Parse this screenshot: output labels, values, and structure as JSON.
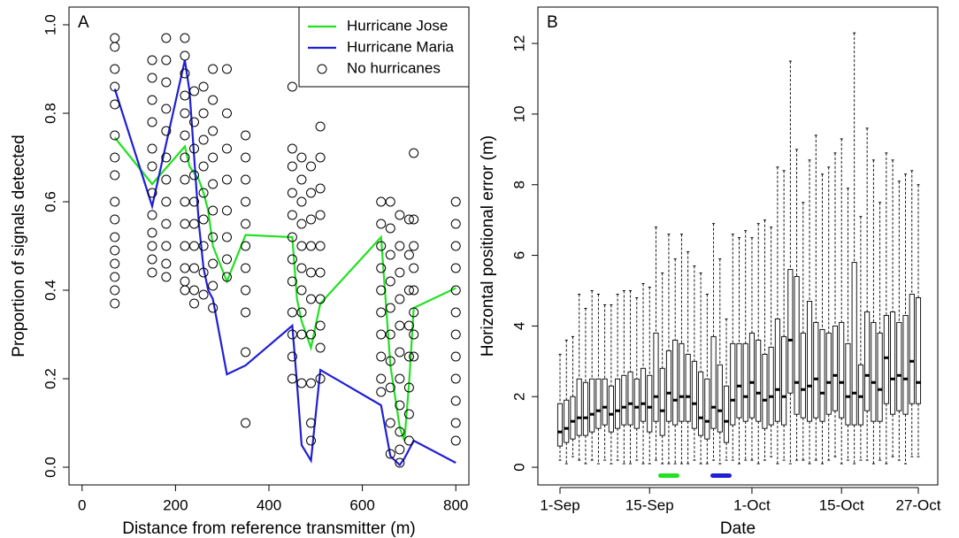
{
  "chart_data": [
    {
      "type": "scatter",
      "label": "A",
      "xlabel": "Distance from reference transmitter (m)",
      "ylabel": "Proportion of signals detected",
      "xlim": [
        -28,
        828
      ],
      "ylim": [
        -0.04,
        1.04
      ],
      "xticks": [
        0,
        200,
        400,
        600,
        800
      ],
      "yticks": [
        {
          "value": 0,
          "label": "0.0"
        },
        0.2,
        0.4,
        0.6,
        0.8,
        {
          "value": 1,
          "label": "1.0"
        }
      ],
      "legend": "top right",
      "series": [
        {
          "name": "Hurricane Jose",
          "color": "#22e022",
          "style": "line",
          "x": [
            70,
            150,
            220,
            230,
            250,
            260,
            270,
            280,
            310,
            350,
            450,
            460,
            470,
            490,
            510,
            640,
            660,
            680,
            690,
            700,
            710,
            800
          ],
          "values": [
            0.745,
            0.64,
            0.725,
            0.68,
            0.65,
            0.62,
            0.58,
            0.5,
            0.42,
            0.525,
            0.52,
            0.38,
            0.33,
            0.27,
            0.37,
            0.52,
            0.23,
            0.09,
            0.06,
            0.19,
            0.36,
            0.405
          ]
        },
        {
          "name": "Hurricane Maria",
          "color": "#1f1fd6",
          "style": "line",
          "x": [
            70,
            150,
            220,
            230,
            250,
            260,
            270,
            280,
            310,
            350,
            450,
            460,
            470,
            490,
            510,
            640,
            660,
            680,
            690,
            700,
            710,
            800
          ],
          "values": [
            0.855,
            0.59,
            0.92,
            0.85,
            0.55,
            0.45,
            0.4,
            0.38,
            0.21,
            0.23,
            0.32,
            0.19,
            0.05,
            0.015,
            0.22,
            0.14,
            0.025,
            0.005,
            0.02,
            0.04,
            0.06,
            0.01
          ]
        },
        {
          "name": "No hurricanes",
          "color": "#000000",
          "style": "points",
          "x": [
            70,
            70,
            70,
            70,
            70,
            70,
            70,
            70,
            70,
            70,
            70,
            70,
            70,
            70,
            70,
            70,
            150,
            150,
            150,
            150,
            150,
            150,
            150,
            150,
            150,
            150,
            150,
            150,
            180,
            180,
            180,
            180,
            180,
            180,
            180,
            180,
            180,
            180,
            180,
            180,
            220,
            220,
            220,
            220,
            220,
            220,
            220,
            220,
            220,
            220,
            220,
            220,
            220,
            220,
            240,
            240,
            240,
            240,
            240,
            240,
            240,
            240,
            240,
            240,
            260,
            260,
            260,
            260,
            260,
            260,
            260,
            260,
            260,
            280,
            280,
            280,
            280,
            280,
            280,
            280,
            280,
            280,
            280,
            310,
            310,
            310,
            310,
            310,
            310,
            310,
            310,
            350,
            350,
            350,
            350,
            350,
            350,
            350,
            350,
            350,
            350,
            350,
            450,
            450,
            450,
            450,
            450,
            450,
            450,
            450,
            450,
            450,
            450,
            450,
            470,
            470,
            470,
            470,
            470,
            470,
            470,
            470,
            470,
            470,
            490,
            490,
            490,
            490,
            490,
            490,
            490,
            490,
            490,
            490,
            510,
            510,
            510,
            510,
            510,
            510,
            510,
            510,
            510,
            510,
            640,
            640,
            640,
            640,
            640,
            640,
            640,
            640,
            640,
            640,
            660,
            660,
            660,
            660,
            660,
            660,
            660,
            660,
            660,
            660,
            680,
            680,
            680,
            680,
            680,
            680,
            680,
            680,
            680,
            680,
            680,
            700,
            700,
            700,
            700,
            700,
            700,
            700,
            700,
            710,
            710,
            710,
            710,
            710,
            710,
            710,
            710,
            800,
            800,
            800,
            800,
            800,
            800,
            800,
            800,
            800,
            800,
            800,
            800
          ],
          "values": [
            0.97,
            0.95,
            0.9,
            0.86,
            0.82,
            0.75,
            0.7,
            0.66,
            0.6,
            0.56,
            0.52,
            0.49,
            0.46,
            0.43,
            0.4,
            0.37,
            0.92,
            0.88,
            0.83,
            0.78,
            0.72,
            0.68,
            0.62,
            0.57,
            0.53,
            0.5,
            0.47,
            0.44,
            0.97,
            0.92,
            0.87,
            0.81,
            0.76,
            0.7,
            0.65,
            0.6,
            0.55,
            0.5,
            0.46,
            0.43,
            0.97,
            0.93,
            0.89,
            0.84,
            0.8,
            0.75,
            0.7,
            0.65,
            0.6,
            0.55,
            0.5,
            0.45,
            0.42,
            0.4,
            0.85,
            0.78,
            0.72,
            0.66,
            0.6,
            0.55,
            0.5,
            0.45,
            0.4,
            0.37,
            0.86,
            0.8,
            0.74,
            0.68,
            0.62,
            0.56,
            0.5,
            0.44,
            0.39,
            0.9,
            0.83,
            0.76,
            0.7,
            0.64,
            0.58,
            0.52,
            0.46,
            0.41,
            0.36,
            0.9,
            0.8,
            0.72,
            0.65,
            0.58,
            0.52,
            0.47,
            0.43,
            0.75,
            0.7,
            0.65,
            0.6,
            0.55,
            0.5,
            0.45,
            0.4,
            0.35,
            0.26,
            0.1,
            0.86,
            0.72,
            0.68,
            0.62,
            0.57,
            0.52,
            0.47,
            0.42,
            0.35,
            0.3,
            0.25,
            0.2,
            0.7,
            0.65,
            0.6,
            0.55,
            0.5,
            0.45,
            0.4,
            0.35,
            0.3,
            0.19,
            0.68,
            0.62,
            0.56,
            0.5,
            0.44,
            0.38,
            0.3,
            0.19,
            0.1,
            0.06,
            0.77,
            0.7,
            0.63,
            0.57,
            0.5,
            0.44,
            0.38,
            0.32,
            0.27,
            0.2,
            0.6,
            0.55,
            0.5,
            0.45,
            0.4,
            0.35,
            0.3,
            0.25,
            0.2,
            0.17,
            0.6,
            0.54,
            0.48,
            0.42,
            0.36,
            0.3,
            0.24,
            0.18,
            0.1,
            0.03,
            0.57,
            0.5,
            0.44,
            0.38,
            0.32,
            0.26,
            0.2,
            0.14,
            0.08,
            0.04,
            0.01,
            0.56,
            0.48,
            0.4,
            0.32,
            0.25,
            0.18,
            0.12,
            0.06,
            0.71,
            0.56,
            0.5,
            0.45,
            0.4,
            0.35,
            0.3,
            0.25,
            0.6,
            0.55,
            0.5,
            0.45,
            0.4,
            0.35,
            0.3,
            0.25,
            0.2,
            0.15,
            0.1,
            0.06
          ]
        }
      ]
    },
    {
      "type": "box",
      "label": "B",
      "xlabel": "Date",
      "ylabel": "Horizontal positional error (m)",
      "ylim": [
        -0.5,
        13.03
      ],
      "yticks": [
        0,
        2,
        4,
        6,
        8,
        10,
        12
      ],
      "categories": [
        "1-Sep",
        null,
        null,
        null,
        null,
        null,
        null,
        null,
        null,
        null,
        null,
        null,
        null,
        null,
        "15-Sep",
        null,
        null,
        null,
        null,
        null,
        null,
        null,
        null,
        null,
        null,
        null,
        null,
        null,
        null,
        null,
        "1-Oct",
        null,
        null,
        null,
        null,
        null,
        null,
        null,
        null,
        null,
        null,
        null,
        null,
        null,
        "15-Oct",
        null,
        null,
        null,
        null,
        null,
        null,
        null,
        null,
        null,
        null,
        null,
        "27-Oct"
      ],
      "min": [
        0.2,
        0.1,
        0.3,
        0.2,
        0.1,
        0.2,
        0.1,
        0.2,
        0.1,
        0.2,
        0.1,
        0.1,
        0.2,
        0.1,
        0.1,
        0.2,
        0.1,
        0.1,
        0.1,
        0.1,
        0.1,
        0.2,
        0.1,
        0.1,
        0.2,
        0.1,
        0.2,
        0.2,
        0.1,
        0.2,
        0.2,
        0.1,
        0.2,
        0.3,
        0.1,
        0.2,
        0.1,
        0.2,
        0.2,
        0.1,
        0.2,
        0.1,
        0.2,
        0.3,
        0.1,
        0.2,
        0.1,
        0.2,
        0.2,
        0.1,
        0.2,
        0.1,
        0.3,
        0.2,
        0.1,
        0.3,
        0.3
      ],
      "q1": [
        0.6,
        0.7,
        0.8,
        0.9,
        0.9,
        1.0,
        1.1,
        1.2,
        1.0,
        1.1,
        1.2,
        1.2,
        1.1,
        1.3,
        1.0,
        1.3,
        0.9,
        1.3,
        1.2,
        1.3,
        1.3,
        1.1,
        0.9,
        0.8,
        1.1,
        1.0,
        0.7,
        1.2,
        1.4,
        1.3,
        1.4,
        1.3,
        1.1,
        1.2,
        1.3,
        1.2,
        2.1,
        1.5,
        1.4,
        1.3,
        1.4,
        1.3,
        1.5,
        1.6,
        1.4,
        1.2,
        1.2,
        1.2,
        1.6,
        1.3,
        1.3,
        1.8,
        1.5,
        1.6,
        1.5,
        1.8,
        1.8
      ],
      "median": [
        1.0,
        1.1,
        1.3,
        1.4,
        1.4,
        1.5,
        1.6,
        1.7,
        1.5,
        1.6,
        1.7,
        1.8,
        1.7,
        1.8,
        1.7,
        2.0,
        1.6,
        2.1,
        1.9,
        2.0,
        2.0,
        1.8,
        1.4,
        1.3,
        1.7,
        1.6,
        1.3,
        1.9,
        2.3,
        2.0,
        2.4,
        2.1,
        1.9,
        2.0,
        2.2,
        2.0,
        3.6,
        2.4,
        2.2,
        2.3,
        2.5,
        2.1,
        2.4,
        2.6,
        2.4,
        2.0,
        2.1,
        2.0,
        2.6,
        2.4,
        2.2,
        3.1,
        2.5,
        2.6,
        2.5,
        3.0,
        2.4
      ],
      "q3": [
        1.8,
        1.9,
        2.0,
        2.5,
        2.4,
        2.5,
        2.5,
        2.5,
        2.3,
        2.5,
        2.6,
        2.7,
        2.5,
        2.8,
        2.6,
        3.8,
        2.8,
        3.3,
        3.6,
        3.5,
        3.2,
        3.0,
        2.7,
        2.5,
        3.7,
        2.9,
        2.3,
        3.5,
        3.5,
        3.5,
        3.8,
        3.6,
        3.2,
        3.4,
        4.2,
        3.7,
        5.6,
        5.4,
        3.8,
        4.7,
        4.1,
        3.9,
        3.8,
        4.0,
        4.1,
        3.5,
        5.8,
        2.9,
        4.4,
        4.1,
        3.8,
        4.3,
        4.4,
        4.1,
        4.3,
        4.9,
        4.8
      ],
      "max": [
        3.2,
        3.6,
        3.7,
        4.9,
        4.5,
        5.0,
        4.9,
        4.6,
        4.6,
        4.9,
        5.0,
        5.0,
        4.8,
        5.2,
        5.1,
        6.8,
        5.5,
        6.6,
        5.9,
        6.6,
        6.1,
        5.7,
        5.5,
        4.9,
        6.9,
        5.9,
        4.2,
        6.6,
        6.5,
        6.7,
        6.5,
        6.9,
        7.0,
        6.8,
        8.5,
        8.4,
        11.5,
        9.0,
        7.5,
        8.7,
        9.4,
        8.3,
        8.5,
        8.9,
        9.3,
        7.9,
        12.3,
        7.1,
        9.6,
        8.7,
        7.5,
        8.9,
        8.7,
        8.1,
        8.3,
        8.4,
        8.0
      ]
    }
  ]
}
